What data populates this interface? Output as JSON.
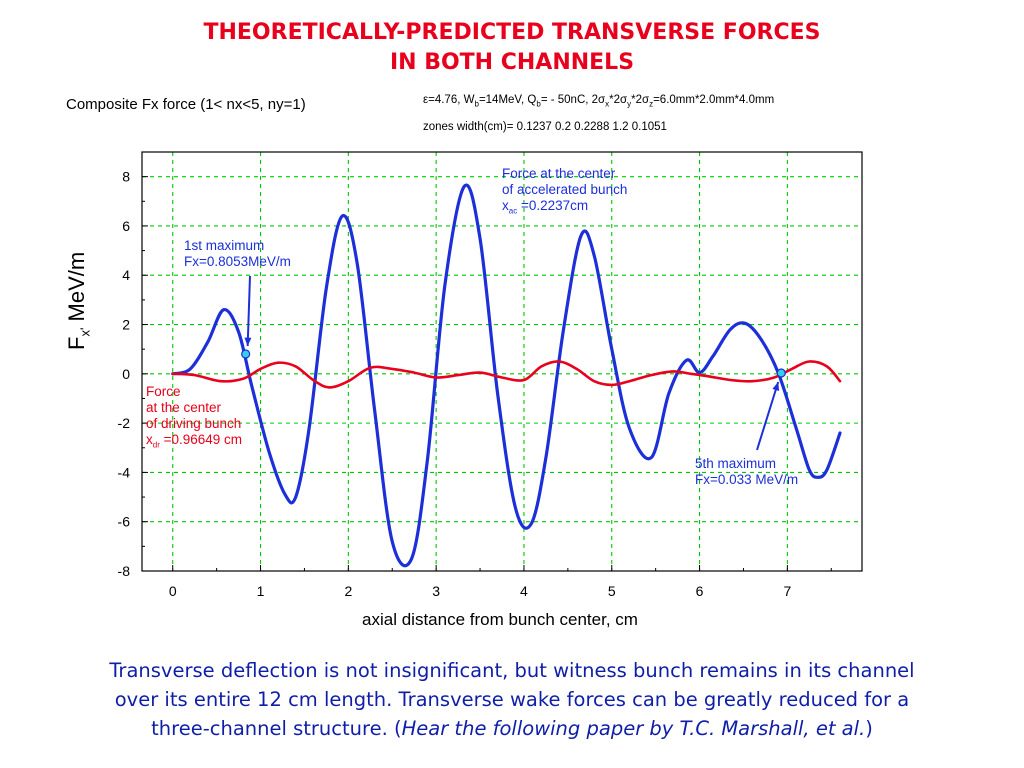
{
  "slide": {
    "title_line1": "THEORETICALLY-PREDICTED TRANSVERSE FORCES",
    "title_line2": "IN BOTH CHANNELS",
    "caption_line1": "Transverse deflection is not insignificant, but witness bunch remains in its channel",
    "caption_line2": "over its entire 12 cm length.  Transverse wake forces can be greatly reduced for a",
    "caption_line3_pre": "three-channel structure.  (",
    "caption_line3_italic": "Hear the following paper by T.C. Marshall, et al.",
    "caption_line3_post": ")"
  },
  "colors": {
    "title": "#e8001c",
    "caption": "#0f1ea8",
    "blue_series": "#1c2fd9",
    "red_series": "#e8001c",
    "grid": "#00c800"
  },
  "chart_data": {
    "type": "line",
    "title": "Composite Fx force (1< nx<5, ny=1)",
    "params": {
      "eps": "ε=4.76, W",
      "wb_sub": "b",
      "wb_val": "=14MeV, Q",
      "qb_sub": "b",
      "qb_val": "= - 50nC, 2σ",
      "sx_sub": "x",
      "sx_val": "*2σ",
      "sy_sub": "y",
      "sy_val": "*2σ",
      "sz_sub": "z",
      "sz_val": "=6.0mm*2.0mm*4.0mm"
    },
    "zones_text": "zones width(cm)=  0.1237  0.2  0.2288  1.2  0.1051",
    "xlabel": "axial distance from bunch center, cm",
    "ylabel_main": "F",
    "ylabel_sub": "x'",
    "ylabel_unit": " MeV/m",
    "xlim": [
      -0.35,
      7.85
    ],
    "ylim": [
      -8,
      9
    ],
    "xticks": [
      "0",
      "1",
      "2",
      "3",
      "4",
      "5",
      "6",
      "7"
    ],
    "yticks": [
      "8",
      "6",
      "4",
      "2",
      "0",
      "-2",
      "-4",
      "-6",
      "-8"
    ],
    "grid": true,
    "series": [
      {
        "color": "blue",
        "x": [
          0.0,
          0.2,
          0.4,
          0.58,
          0.75,
          0.9,
          1.1,
          1.28,
          1.4,
          1.55,
          1.75,
          1.93,
          2.1,
          2.3,
          2.5,
          2.72,
          2.9,
          3.1,
          3.32,
          3.5,
          3.7,
          3.9,
          4.08,
          4.25,
          4.45,
          4.65,
          4.8,
          5.0,
          5.2,
          5.45,
          5.65,
          5.85,
          6.0,
          6.15,
          6.35,
          6.52,
          6.7,
          6.9,
          7.1,
          7.25,
          7.35,
          7.45,
          7.6
        ],
        "y": [
          0.0,
          0.2,
          1.3,
          2.6,
          1.7,
          -0.5,
          -3.2,
          -4.9,
          -5.0,
          -2.3,
          3.5,
          6.4,
          4.5,
          -1.5,
          -6.8,
          -7.5,
          -3.5,
          3.6,
          7.6,
          5.5,
          -0.8,
          -5.4,
          -6.1,
          -3.4,
          1.8,
          5.6,
          4.8,
          1.0,
          -2.2,
          -3.4,
          -0.8,
          0.55,
          0.05,
          0.7,
          1.8,
          2.05,
          1.4,
          0.0,
          -2.2,
          -3.9,
          -4.2,
          -3.9,
          -2.4
        ]
      },
      {
        "color": "red",
        "x": [
          0.0,
          0.25,
          0.55,
          0.8,
          1.0,
          1.2,
          1.4,
          1.6,
          1.78,
          2.0,
          2.25,
          2.5,
          2.75,
          3.0,
          3.25,
          3.5,
          3.75,
          4.0,
          4.2,
          4.4,
          4.6,
          4.8,
          5.0,
          5.2,
          5.45,
          5.7,
          5.9,
          6.1,
          6.35,
          6.6,
          6.85,
          7.05,
          7.25,
          7.45,
          7.6
        ],
        "y": [
          0.0,
          -0.05,
          -0.3,
          -0.2,
          0.2,
          0.45,
          0.3,
          -0.25,
          -0.55,
          -0.3,
          0.25,
          0.2,
          0.05,
          -0.15,
          -0.05,
          0.05,
          -0.15,
          -0.25,
          0.3,
          0.5,
          0.2,
          -0.3,
          -0.45,
          -0.3,
          -0.05,
          0.1,
          0.0,
          -0.1,
          -0.25,
          -0.3,
          -0.15,
          0.2,
          0.5,
          0.3,
          -0.3
        ]
      }
    ],
    "markers": [
      {
        "x": 0.8305,
        "y": 0.8053
      },
      {
        "x": 6.93,
        "y": 0.033
      }
    ],
    "annotations": {
      "first_max_l1": "1st maximum",
      "first_max_l2": "Fx=0.8053MeV/m",
      "fifth_max_l1": "5th maximum",
      "fifth_max_l2": "Fx=0.033 MeV/m",
      "accel_l1": "Force at the center",
      "accel_l2": "of accelerated bunch",
      "accel_l3_pre": "x",
      "accel_l3_sub": "ac",
      "accel_l3_post": " =0.2237cm",
      "drive_l1": "Force",
      "drive_l2": "at the center",
      "drive_l3": "of driving bunch",
      "drive_l4_pre": "x",
      "drive_l4_sub": "dr",
      "drive_l4_post": " =0.96649 cm"
    }
  }
}
